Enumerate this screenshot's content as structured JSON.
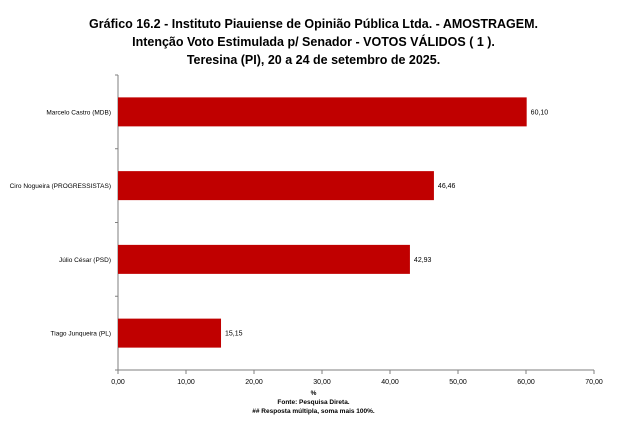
{
  "title_lines": [
    "Gráfico   16.2   -   Instituto Piauiense de Opinião Pública Ltda. - AMOSTRAGEM.",
    "Intenção Voto Estimulada p/ Senador - VOTOS VÁLIDOS ( 1 ).",
    "Teresina (PI), 20 a 24 de setembro de 2025."
  ],
  "footer_lines": [
    "%",
    "Fonte: Pesquisa Direta.",
    "## Resposta múltipla, soma mais 100%."
  ],
  "chart_data": {
    "type": "bar",
    "orientation": "horizontal",
    "categories": [
      "Marcelo Castro (MDB)",
      "Ciro Nogueira (PROGRESSISTAS)",
      "Júlio César (PSD)",
      "Tiago Junqueira  (PL)"
    ],
    "values": [
      60.1,
      46.46,
      42.93,
      15.15
    ],
    "value_labels": [
      "60,10",
      "46,46",
      "42,93",
      "15,15"
    ],
    "xlabel": "%",
    "xlim": [
      0,
      70
    ],
    "x_ticks": [
      0,
      10,
      20,
      30,
      40,
      50,
      60,
      70
    ],
    "x_tick_labels": [
      "0,00",
      "10,00",
      "20,00",
      "30,00",
      "40,00",
      "50,00",
      "60,00",
      "70,00"
    ],
    "grid": false,
    "legend": "none",
    "bar_color": "#c00000"
  }
}
